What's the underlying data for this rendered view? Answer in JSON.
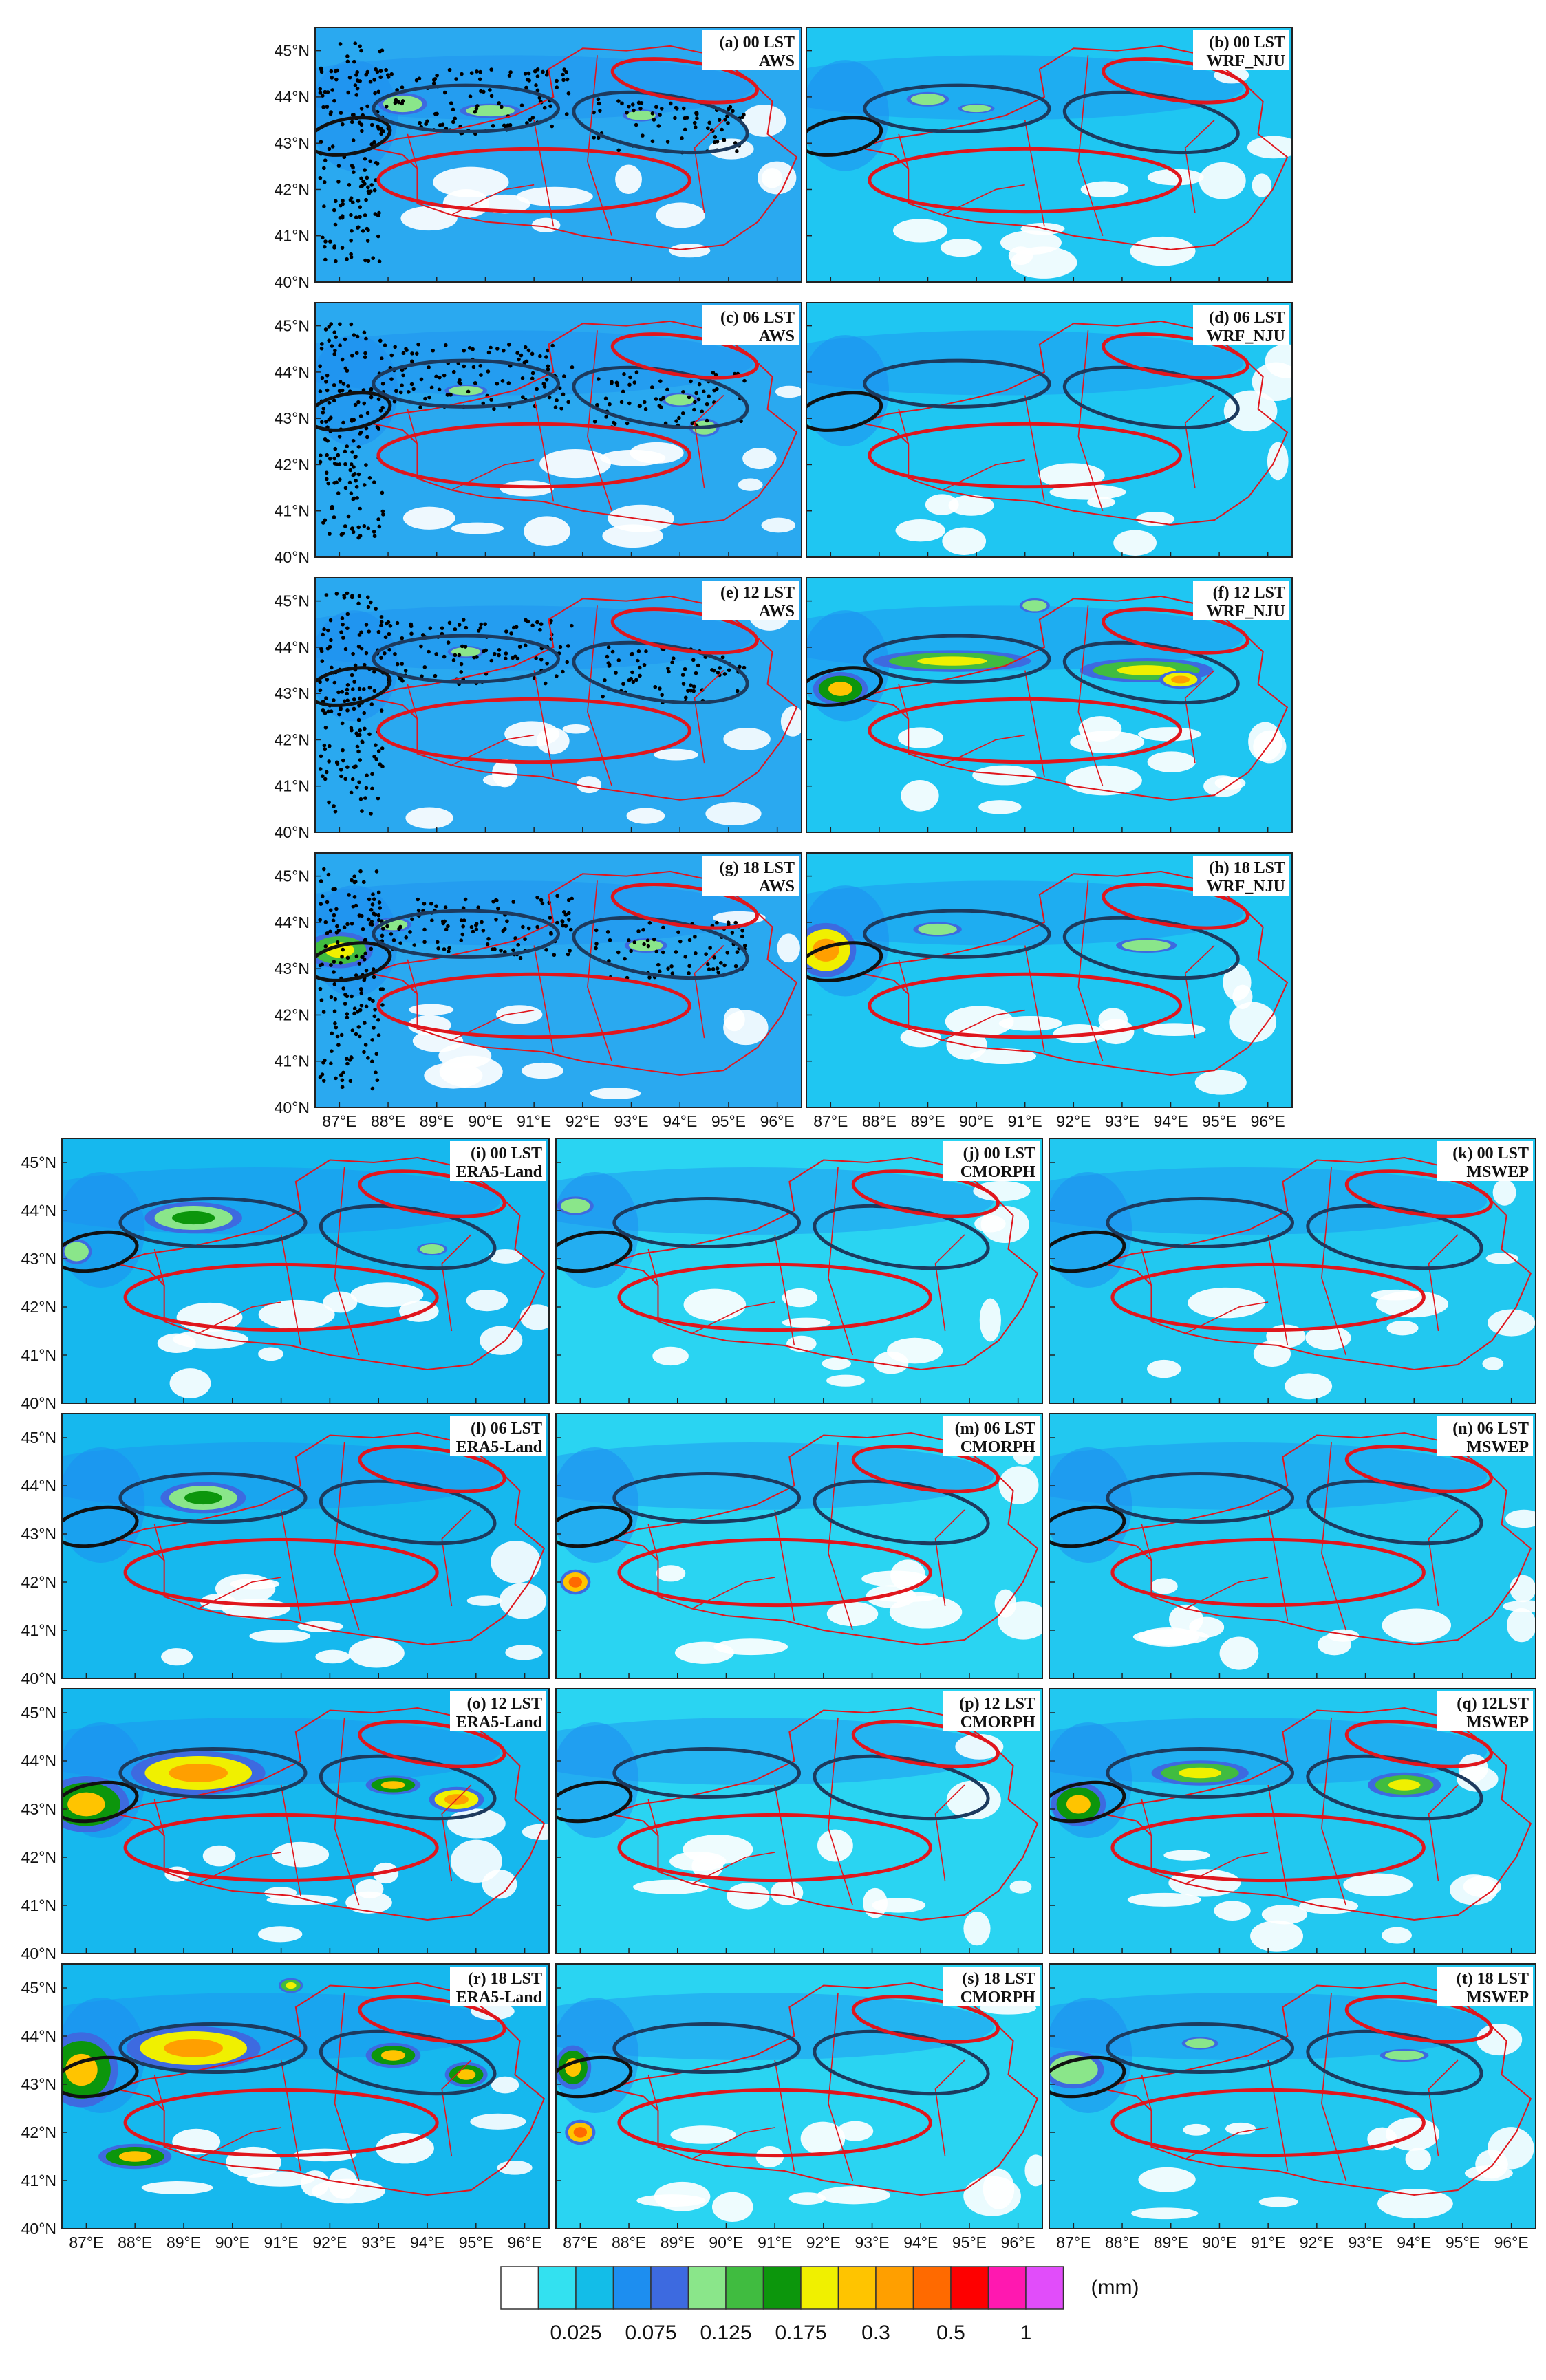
{
  "figure": {
    "lat_labels": [
      "45°N",
      "44°N",
      "43°N",
      "42°N",
      "41°N",
      "40°N"
    ],
    "lon_labels": [
      "87°E",
      "88°E",
      "89°E",
      "90°E",
      "91°E",
      "92°E",
      "93°E",
      "94°E",
      "95°E",
      "96°E"
    ],
    "lat_values": [
      45,
      44,
      43,
      42,
      41,
      40
    ],
    "lon_values": [
      87,
      88,
      89,
      90,
      91,
      92,
      93,
      94,
      95,
      96
    ],
    "extent": {
      "lon": [
        86.5,
        96.5
      ],
      "lat": [
        40,
        45.5
      ]
    }
  },
  "panels": [
    {
      "id": "a",
      "line1": "(a) 00 LST",
      "line2": "AWS",
      "stations": true,
      "cores": []
    },
    {
      "id": "b",
      "line1": "(b) 00 LST",
      "line2": "WRF_NJU",
      "stations": false,
      "cores": []
    },
    {
      "id": "c",
      "line1": "(c) 06 LST",
      "line2": "AWS",
      "stations": true,
      "cores": []
    },
    {
      "id": "d",
      "line1": "(d) 06 LST",
      "line2": "WRF_NJU",
      "stations": false,
      "cores": []
    },
    {
      "id": "e",
      "line1": "(e) 12 LST",
      "line2": "AWS",
      "stations": true,
      "cores": []
    },
    {
      "id": "f",
      "line1": "(f) 12 LST",
      "line2": "WRF_NJU",
      "stations": false,
      "cores": []
    },
    {
      "id": "g",
      "line1": "(g) 18 LST",
      "line2": "AWS",
      "stations": true,
      "cores": []
    },
    {
      "id": "h",
      "line1": "(h) 18 LST",
      "line2": "WRF_NJU",
      "stations": false,
      "cores": []
    },
    {
      "id": "i",
      "line1": "(i) 00 LST",
      "line2": "ERA5-Land",
      "stations": false,
      "cores": []
    },
    {
      "id": "j",
      "line1": "(j) 00 LST",
      "line2": "CMORPH",
      "stations": false,
      "cores": []
    },
    {
      "id": "k",
      "line1": "(k) 00 LST",
      "line2": "MSWEP",
      "stations": false,
      "cores": []
    },
    {
      "id": "l",
      "line1": "(l) 06 LST",
      "line2": "ERA5-Land",
      "stations": false,
      "cores": []
    },
    {
      "id": "m",
      "line1": "(m) 06 LST",
      "line2": "CMORPH",
      "stations": false,
      "cores": []
    },
    {
      "id": "n",
      "line1": "(n) 06 LST",
      "line2": "MSWEP",
      "stations": false,
      "cores": []
    },
    {
      "id": "o",
      "line1": "(o) 12 LST",
      "line2": "ERA5-Land",
      "stations": false,
      "cores": []
    },
    {
      "id": "p",
      "line1": "(p) 12 LST",
      "line2": "CMORPH",
      "stations": false,
      "cores": []
    },
    {
      "id": "q",
      "line1": "(q) 12LST",
      "line2": "MSWEP",
      "stations": false,
      "cores": []
    },
    {
      "id": "r",
      "line1": "(r) 18 LST",
      "line2": "ERA5-Land",
      "stations": false,
      "cores": []
    },
    {
      "id": "s",
      "line1": "(s) 18 LST",
      "line2": "CMORPH",
      "stations": false,
      "cores": []
    },
    {
      "id": "t",
      "line1": "(t) 18 LST",
      "line2": "MSWEP",
      "stations": false,
      "cores": []
    }
  ],
  "regions": {
    "black_ellipse": {
      "lon": 87.2,
      "lat": 43.15,
      "rx": 0.85,
      "ry": 0.38,
      "rot": -10,
      "color": "#111111"
    },
    "navy_ellipse_west": {
      "lon": 89.6,
      "lat": 43.75,
      "rx": 1.9,
      "ry": 0.5,
      "rot": 0,
      "color": "#1c3a5e"
    },
    "navy_ellipse_east": {
      "lon": 93.6,
      "lat": 43.45,
      "rx": 1.8,
      "ry": 0.6,
      "rot": 8,
      "color": "#1c3a5e"
    },
    "red_ellipse_north": {
      "lon": 94.1,
      "lat": 44.35,
      "rx": 1.5,
      "ry": 0.42,
      "rot": 8,
      "color": "#e0161d"
    },
    "red_ellipse_south": {
      "lon": 91.0,
      "lat": 42.2,
      "rx": 3.2,
      "ry": 0.68,
      "rot": 0,
      "color": "#e0161d"
    }
  },
  "legend": {
    "colors": [
      "#ffffff",
      "#33e1f0",
      "#13bde8",
      "#1d8ef0",
      "#3d6ae0",
      "#8ae68a",
      "#40bc40",
      "#0c960c",
      "#f0f000",
      "#ffc400",
      "#ff9f00",
      "#ff6a00",
      "#fe0000",
      "#ff18b0",
      "#e14dfa"
    ],
    "labels": [
      "0.025",
      "0.075",
      "0.125",
      "0.175",
      "0.3",
      "0.5",
      "1"
    ],
    "label_after_box": [
      1,
      3,
      5,
      7,
      9,
      11,
      13
    ],
    "unit": "(mm)"
  }
}
